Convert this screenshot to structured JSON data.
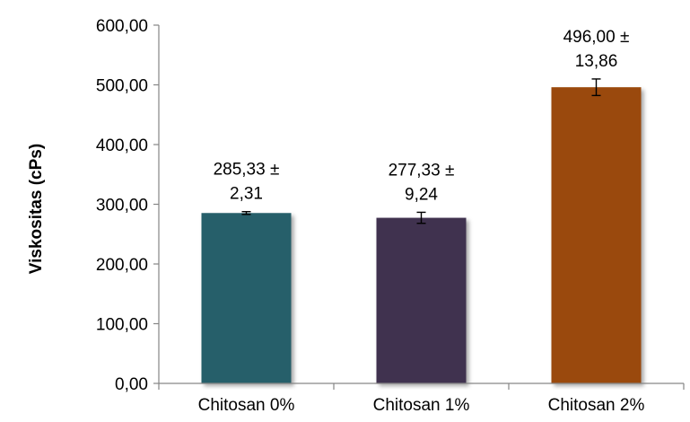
{
  "chart_data": {
    "type": "bar",
    "categories": [
      "Chitosan 0%",
      "Chitosan 1%",
      "Chitosan 2%"
    ],
    "values": [
      285.33,
      277.33,
      496.0
    ],
    "errors": [
      2.31,
      9.24,
      13.86
    ],
    "data_labels": [
      [
        "285,33 ±",
        "2,31"
      ],
      [
        "277,33 ±",
        "9,24"
      ],
      [
        "496,00 ±",
        "13,86"
      ]
    ],
    "colors": [
      "#255E6B",
      "#40304F",
      "#9A4A0A"
    ],
    "ylabel": "Viskositas (cPs)",
    "xlabel": "",
    "ylim": [
      0,
      600
    ],
    "yticks": [
      0,
      100,
      200,
      300,
      400,
      500,
      600
    ],
    "ytick_labels": [
      "0,00",
      "100,00",
      "200,00",
      "300,00",
      "400,00",
      "500,00",
      "600,00"
    ],
    "grid": false,
    "legend": "none"
  }
}
